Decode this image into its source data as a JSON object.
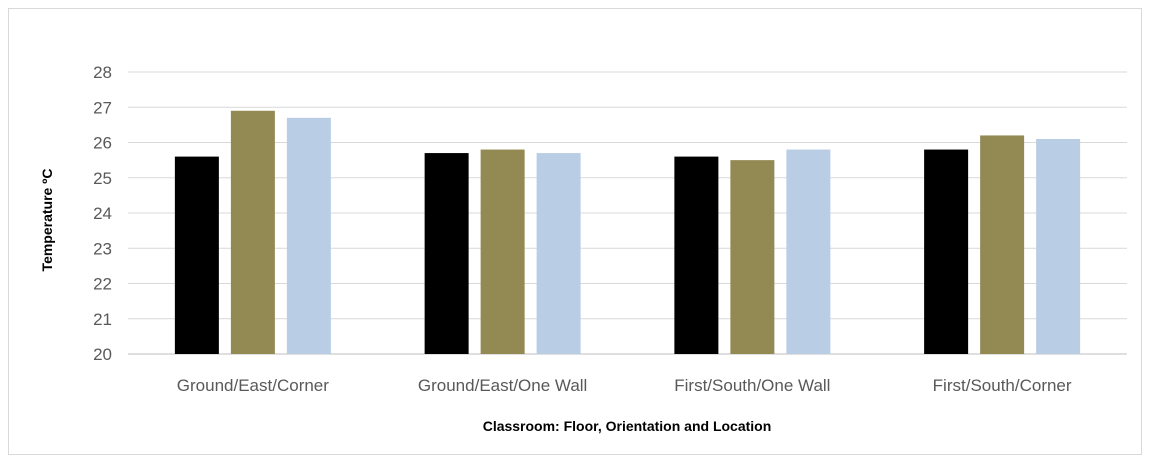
{
  "chart_data": {
    "type": "bar",
    "title": "",
    "xlabel": "Classroom: Floor, Orientation and Location",
    "ylabel": "Temperature ºC",
    "ylim": [
      20,
      28
    ],
    "yticks": [
      20,
      21,
      22,
      23,
      24,
      25,
      26,
      27,
      28
    ],
    "grid": true,
    "legend": "none",
    "categories": [
      "Ground/East/Corner",
      "Ground/East/One Wall",
      "First/South/One Wall",
      "First/South/Corner"
    ],
    "series": [
      {
        "values": [
          25.6,
          25.7,
          25.6,
          25.8
        ],
        "color": "#000000"
      },
      {
        "values": [
          26.9,
          25.8,
          25.5,
          26.2
        ],
        "color": "#938953"
      },
      {
        "values": [
          26.7,
          25.7,
          25.8,
          26.1
        ],
        "color": "#b9cde5"
      }
    ]
  }
}
